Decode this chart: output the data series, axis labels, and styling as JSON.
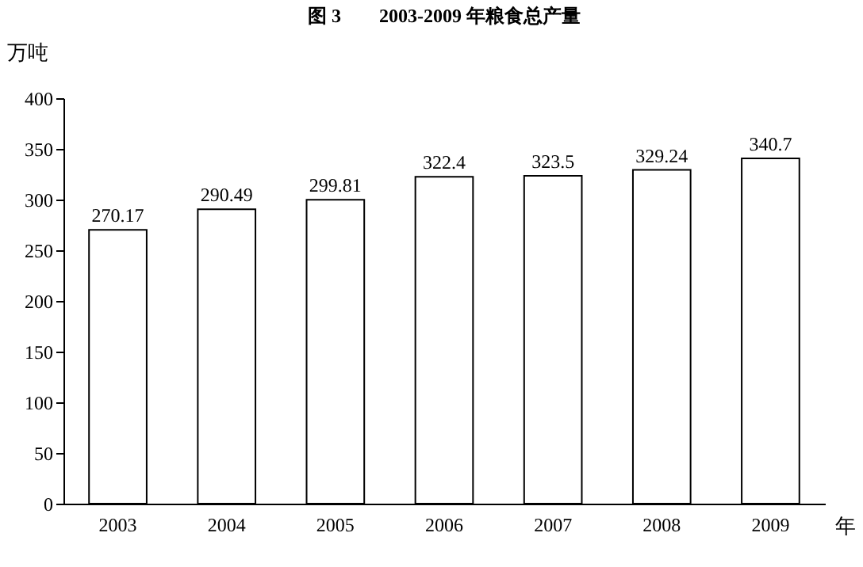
{
  "chart_data": {
    "type": "bar",
    "title": "图 3　　2003-2009 年粮食总产量",
    "xlabel": "年",
    "ylabel": "万吨",
    "categories": [
      "2003",
      "2004",
      "2005",
      "2006",
      "2007",
      "2008",
      "2009"
    ],
    "values": [
      270.17,
      290.49,
      299.81,
      322.4,
      323.5,
      329.24,
      340.7
    ],
    "value_labels": [
      "270.17",
      "290.49",
      "299.81",
      "322.4",
      "323.5",
      "329.24",
      "340.7"
    ],
    "color": "#ffffff",
    "ylim": [
      0,
      400
    ],
    "yticks": [
      0,
      50,
      100,
      150,
      200,
      250,
      300,
      350,
      400
    ],
    "grid": false
  }
}
